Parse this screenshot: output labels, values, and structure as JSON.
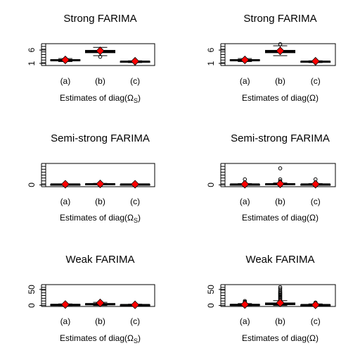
{
  "chart_data": [
    {
      "type": "boxplot",
      "title": "Strong FARIMA",
      "xlabel": "Estimates of diag(Ω_S)",
      "categories": [
        "(a)",
        "(b)",
        "(c)"
      ],
      "yticks": [
        "1",
        "6"
      ],
      "ylim": [
        0.2,
        8.4
      ],
      "boxes": [
        {
          "lo": 1.7,
          "q1": 2.0,
          "med": 2.2,
          "q3": 2.4,
          "hi": 2.8,
          "mean": 2.3,
          "outliers": []
        },
        {
          "lo": 3.9,
          "q1": 5.0,
          "med": 5.5,
          "q3": 5.9,
          "hi": 7.0,
          "mean": 5.7,
          "outliers": [
            3.5
          ]
        },
        {
          "lo": 1.3,
          "q1": 1.5,
          "med": 1.65,
          "q3": 1.8,
          "hi": 2.0,
          "mean": 1.8,
          "outliers": []
        }
      ]
    },
    {
      "type": "boxplot",
      "title": "Strong FARIMA",
      "xlabel": "Estimates of diag(Ω)",
      "categories": [
        "(a)",
        "(b)",
        "(c)"
      ],
      "yticks": [
        "1",
        "6"
      ],
      "ylim": [
        0.2,
        8.4
      ],
      "boxes": [
        {
          "lo": 1.7,
          "q1": 2.0,
          "med": 2.2,
          "q3": 2.4,
          "hi": 2.8,
          "mean": 2.3,
          "outliers": []
        },
        {
          "lo": 3.9,
          "q1": 5.0,
          "med": 5.5,
          "q3": 5.9,
          "hi": 7.6,
          "mean": 5.7,
          "outliers": [
            8.2
          ]
        },
        {
          "lo": 1.3,
          "q1": 1.5,
          "med": 1.65,
          "q3": 1.8,
          "hi": 2.0,
          "mean": 1.8,
          "outliers": []
        }
      ]
    },
    {
      "type": "boxplot",
      "title": "Semi-strong FARIMA",
      "xlabel": "Estimates of diag(Ω_S)",
      "categories": [
        "(a)",
        "(b)",
        "(c)"
      ],
      "yticks": [
        "0"
      ],
      "ylim": [
        -3,
        35
      ],
      "boxes": [
        {
          "lo": 0,
          "q1": 0.3,
          "med": 0.6,
          "q3": 1.0,
          "hi": 1.5,
          "mean": 1.0,
          "outliers": []
        },
        {
          "lo": 0,
          "q1": 0.5,
          "med": 1.0,
          "q3": 1.8,
          "hi": 2.5,
          "mean": 1.5,
          "outliers": []
        },
        {
          "lo": 0,
          "q1": 0.3,
          "med": 0.6,
          "q3": 1.0,
          "hi": 1.5,
          "mean": 1.0,
          "outliers": []
        }
      ]
    },
    {
      "type": "boxplot",
      "title": "Semi-strong FARIMA",
      "xlabel": "Estimates of diag(Ω)",
      "categories": [
        "(a)",
        "(b)",
        "(c)"
      ],
      "yticks": [
        "0"
      ],
      "ylim": [
        -3,
        35
      ],
      "boxes": [
        {
          "lo": 0,
          "q1": 0.3,
          "med": 0.6,
          "q3": 1.0,
          "hi": 2.0,
          "mean": 1.0,
          "outliers": [
            3,
            4,
            9
          ]
        },
        {
          "lo": 0,
          "q1": 0.5,
          "med": 1.0,
          "q3": 1.8,
          "hi": 3.0,
          "mean": 1.5,
          "outliers": [
            4,
            6,
            9,
            27
          ]
        },
        {
          "lo": 0,
          "q1": 0.3,
          "med": 0.6,
          "q3": 1.0,
          "hi": 2.0,
          "mean": 1.0,
          "outliers": [
            3,
            4,
            9
          ]
        }
      ]
    },
    {
      "type": "boxplot",
      "title": "Weak FARIMA",
      "xlabel": "Estimates of diag(Ω_S)",
      "categories": [
        "(a)",
        "(b)",
        "(c)"
      ],
      "yticks": [
        "0",
        "50"
      ],
      "ylim": [
        -3,
        65
      ],
      "boxes": [
        {
          "lo": 0,
          "q1": 1.0,
          "med": 2.0,
          "q3": 3.5,
          "hi": 5,
          "mean": 3,
          "outliers": []
        },
        {
          "lo": 0,
          "q1": 2.0,
          "med": 4.0,
          "q3": 6.0,
          "hi": 10,
          "mean": 8,
          "outliers": []
        },
        {
          "lo": 0,
          "q1": 0.5,
          "med": 1.5,
          "q3": 2.5,
          "hi": 4,
          "mean": 2,
          "outliers": []
        }
      ]
    },
    {
      "type": "boxplot",
      "title": "Weak FARIMA",
      "xlabel": "Estimates of diag(Ω)",
      "categories": [
        "(a)",
        "(b)",
        "(c)"
      ],
      "yticks": [
        "0",
        "50"
      ],
      "ylim": [
        -3,
        65
      ],
      "boxes": [
        {
          "lo": 0,
          "q1": 1.0,
          "med": 2.0,
          "q3": 3.5,
          "hi": 6,
          "mean": 3,
          "outliers": [
            8,
            11,
            14
          ]
        },
        {
          "lo": 0,
          "q1": 2.5,
          "med": 5.0,
          "q3": 8.0,
          "hi": 15,
          "mean": 8,
          "outliers": [
            18,
            21,
            24,
            27,
            30,
            33,
            36,
            39,
            42,
            46,
            52,
            57
          ]
        },
        {
          "lo": 0,
          "q1": 0.5,
          "med": 1.5,
          "q3": 2.5,
          "hi": 5,
          "mean": 2,
          "outliers": [
            7,
            9
          ]
        }
      ]
    }
  ],
  "colors": {
    "mean_marker": "#ff0000",
    "marker_edge": "#000000",
    "ink": "#000000"
  }
}
